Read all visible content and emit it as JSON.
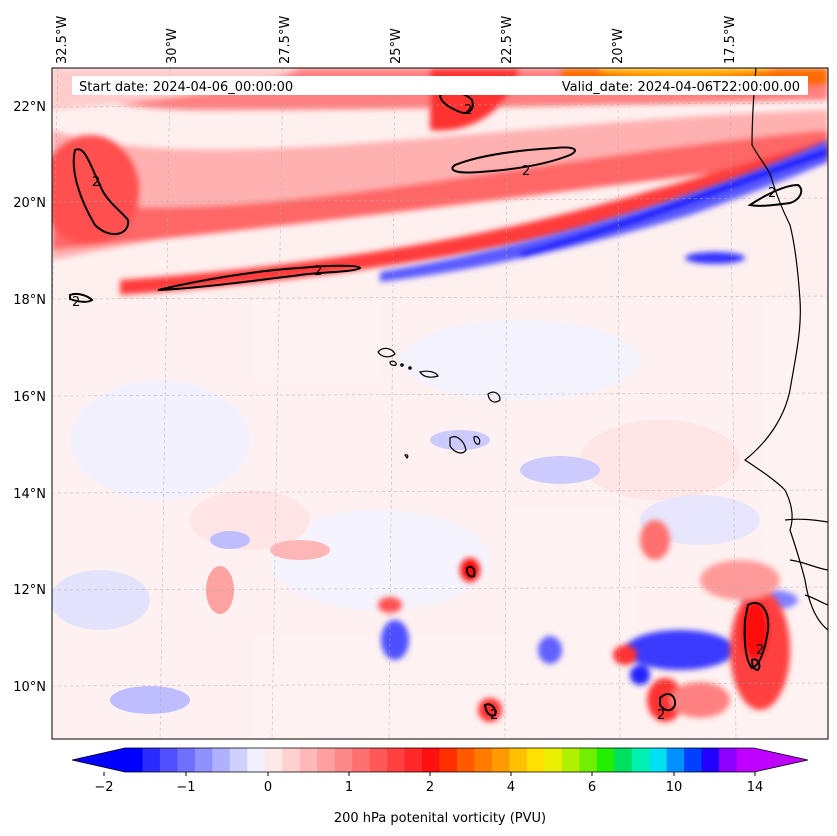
{
  "map": {
    "start_date": "Start date: 2024-04-06_00:00:00",
    "valid_date": "Valid_date: 2024-04-06T22:00:00.00",
    "lon_labels": [
      "32.5°W",
      "30°W",
      "27.5°W",
      "25°W",
      "22.5°W",
      "20°W",
      "17.5°W"
    ],
    "lat_labels": [
      "22°N",
      "20°N",
      "18°N",
      "16°N",
      "14°N",
      "12°N",
      "10°N"
    ],
    "contour_label": "2",
    "variable": "200 hPa potenital vorticity (PVU)",
    "colors": {
      "strong_negative": "#0000ff",
      "weak_negative": "#eef0ff",
      "weak_positive": "#ffe4e4",
      "moderate_positive": "#ff9a9a",
      "strong_positive": "#ff1a1a",
      "contour": "#000000",
      "coastline": "#000000"
    }
  },
  "colorbar": {
    "tick_labels": [
      "−2",
      "−1",
      "0",
      "1",
      "2",
      "4",
      "6",
      "10",
      "14"
    ],
    "colors": [
      "#0000ff",
      "#2b2bff",
      "#5050ff",
      "#7070ff",
      "#9090ff",
      "#b0b0ff",
      "#d0d0ff",
      "#f0f0ff",
      "#ffe8e8",
      "#ffd0d0",
      "#ffb8b8",
      "#ffa0a0",
      "#ff8888",
      "#ff7070",
      "#ff5858",
      "#ff4040",
      "#ff2828",
      "#ff1010",
      "#ff3000",
      "#ff5a00",
      "#ff7a00",
      "#ff9a00",
      "#ffc000",
      "#ffe000",
      "#e8f000",
      "#b0f000",
      "#70f000",
      "#20f000",
      "#00e060",
      "#00f0b0",
      "#00e0f0",
      "#0090ff",
      "#0040ff",
      "#2000ff",
      "#9000ff",
      "#c000ff"
    ]
  }
}
